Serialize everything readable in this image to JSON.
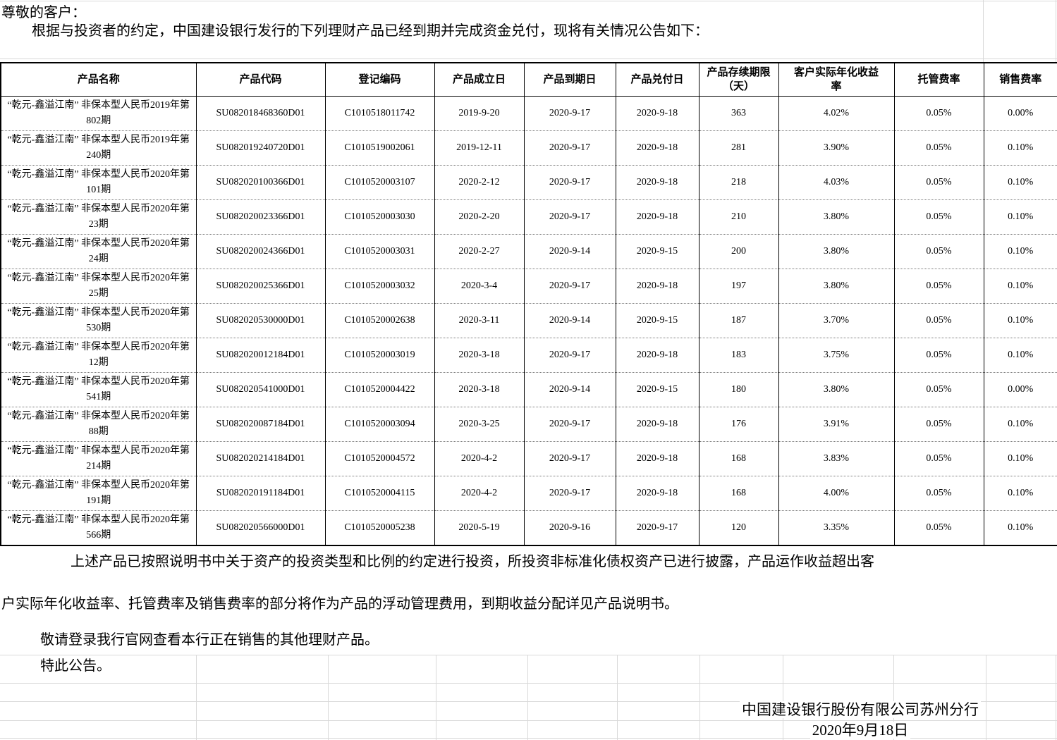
{
  "document": {
    "greeting": "尊敬的客户：",
    "intro": "根据与投资者的约定，中国建设银行发行的下列理财产品已经到期并完成资金兑付，现将有关情况公告如下：",
    "note_line1": "上述产品已按照说明书中关于资产的投资类型和比例的约定进行投资，所投资非标准化债权资产已进行披露，产品运作收益超出客",
    "note_line2": "户实际年化收益率、托管费率及销售费率的部分将作为产品的浮动管理费用，到期收益分配详见产品说明书。",
    "note_line3": "敬请登录我行官网查看本行正在销售的其他理财产品。",
    "note_line4": "特此公告。",
    "issuer": "中国建设银行股份有限公司苏州分行",
    "date": "2020年9月18日"
  },
  "table": {
    "headers": [
      "产品名称",
      "产品代码",
      "登记编码",
      "产品成立日",
      "产品到期日",
      "产品兑付日",
      "产品存续期限（天）",
      "客户实际年化收益率",
      "托管费率",
      "销售费率"
    ],
    "rows": [
      [
        "“乾元-鑫溢江南” 非保本型人民币2019年第802期",
        "SU082018468360D01",
        "C1010518011742",
        "2019-9-20",
        "2020-9-17",
        "2020-9-18",
        "363",
        "4.02%",
        "0.05%",
        "0.00%"
      ],
      [
        "“乾元-鑫溢江南” 非保本型人民币2019年第240期",
        "SU082019240720D01",
        "C1010519002061",
        "2019-12-11",
        "2020-9-17",
        "2020-9-18",
        "281",
        "3.90%",
        "0.05%",
        "0.10%"
      ],
      [
        "“乾元-鑫溢江南” 非保本型人民币2020年第101期",
        "SU082020100366D01",
        "C1010520003107",
        "2020-2-12",
        "2020-9-17",
        "2020-9-18",
        "218",
        "4.03%",
        "0.05%",
        "0.10%"
      ],
      [
        "“乾元-鑫溢江南” 非保本型人民币2020年第23期",
        "SU082020023366D01",
        "C1010520003030",
        "2020-2-20",
        "2020-9-17",
        "2020-9-18",
        "210",
        "3.80%",
        "0.05%",
        "0.10%"
      ],
      [
        "“乾元-鑫溢江南” 非保本型人民币2020年第24期",
        "SU082020024366D01",
        "C1010520003031",
        "2020-2-27",
        "2020-9-14",
        "2020-9-15",
        "200",
        "3.80%",
        "0.05%",
        "0.10%"
      ],
      [
        "“乾元-鑫溢江南” 非保本型人民币2020年第25期",
        "SU082020025366D01",
        "C1010520003032",
        "2020-3-4",
        "2020-9-17",
        "2020-9-18",
        "197",
        "3.80%",
        "0.05%",
        "0.10%"
      ],
      [
        "“乾元-鑫溢江南” 非保本型人民币2020年第530期",
        "SU082020530000D01",
        "C1010520002638",
        "2020-3-11",
        "2020-9-14",
        "2020-9-15",
        "187",
        "3.70%",
        "0.05%",
        "0.10%"
      ],
      [
        "“乾元-鑫溢江南” 非保本型人民币2020年第12期",
        "SU082020012184D01",
        "C1010520003019",
        "2020-3-18",
        "2020-9-17",
        "2020-9-18",
        "183",
        "3.75%",
        "0.05%",
        "0.10%"
      ],
      [
        "“乾元-鑫溢江南” 非保本型人民币2020年第541期",
        "SU082020541000D01",
        "C1010520004422",
        "2020-3-18",
        "2020-9-14",
        "2020-9-15",
        "180",
        "3.80%",
        "0.05%",
        "0.00%"
      ],
      [
        "“乾元-鑫溢江南” 非保本型人民币2020年第88期",
        "SU082020087184D01",
        "C1010520003094",
        "2020-3-25",
        "2020-9-17",
        "2020-9-18",
        "176",
        "3.91%",
        "0.05%",
        "0.10%"
      ],
      [
        "“乾元-鑫溢江南” 非保本型人民币2020年第214期",
        "SU082020214184D01",
        "C1010520004572",
        "2020-4-2",
        "2020-9-17",
        "2020-9-18",
        "168",
        "3.83%",
        "0.05%",
        "0.10%"
      ],
      [
        "“乾元-鑫溢江南” 非保本型人民币2020年第191期",
        "SU082020191184D01",
        "C1010520004115",
        "2020-4-2",
        "2020-9-17",
        "2020-9-18",
        "168",
        "4.00%",
        "0.05%",
        "0.10%"
      ],
      [
        "“乾元-鑫溢江南” 非保本型人民币2020年第566期",
        "SU082020566000D01",
        "C1010520005238",
        "2020-5-19",
        "2020-9-16",
        "2020-9-17",
        "120",
        "3.35%",
        "0.05%",
        "0.10%"
      ]
    ]
  }
}
